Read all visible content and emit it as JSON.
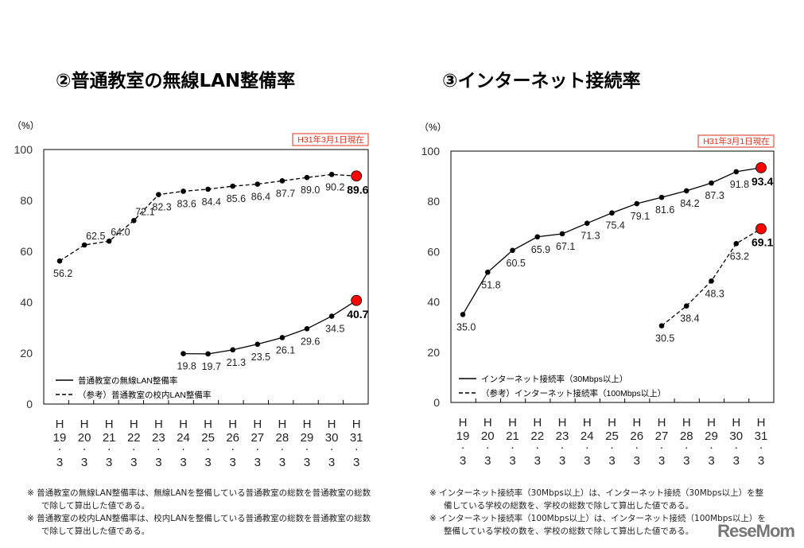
{
  "chart_data": [
    {
      "type": "line",
      "title": "②普通教室の無線LAN整備率",
      "unit_label": "（%）",
      "date_badge": "H31年3月1日現在",
      "categories": [
        "H19.3",
        "H20.3",
        "H21.3",
        "H22.3",
        "H23.3",
        "H24.3",
        "H25.3",
        "H26.3",
        "H27.3",
        "H28.3",
        "H29.3",
        "H30.3",
        "H31.3"
      ],
      "ylim": [
        0,
        100
      ],
      "yticks": [
        0,
        20,
        40,
        60,
        80,
        100
      ],
      "legend": "bottom-left",
      "grid": false,
      "series": [
        {
          "name": "普通教室の無線LAN整備率",
          "style": "solid",
          "values": [
            null,
            null,
            null,
            null,
            null,
            19.8,
            19.7,
            21.3,
            23.5,
            26.1,
            29.6,
            34.5,
            40.7
          ]
        },
        {
          "name": "（参考）普通教室の校内LAN整備率",
          "style": "dashed",
          "values": [
            56.2,
            62.5,
            64.0,
            72.1,
            82.3,
            83.6,
            84.4,
            85.6,
            86.4,
            87.7,
            89.0,
            90.2,
            89.6
          ]
        }
      ]
    },
    {
      "type": "line",
      "title": "③インターネット接続率",
      "unit_label": "（%）",
      "date_badge": "H31年3月1日現在",
      "categories": [
        "H19.3",
        "H20.3",
        "H21.3",
        "H22.3",
        "H23.3",
        "H24.3",
        "H25.3",
        "H26.3",
        "H27.3",
        "H28.3",
        "H29.3",
        "H30.3",
        "H31.3"
      ],
      "ylim": [
        0,
        100
      ],
      "yticks": [
        0,
        20,
        40,
        60,
        80,
        100
      ],
      "legend": "bottom-left",
      "grid": false,
      "series": [
        {
          "name": "インターネット接続率（30Mbps以上）",
          "style": "solid",
          "values": [
            35.0,
            51.8,
            60.5,
            65.9,
            67.1,
            71.3,
            75.4,
            79.1,
            81.6,
            84.2,
            87.3,
            91.8,
            93.4
          ]
        },
        {
          "name": "（参考）インターネット接続率（100Mbps以上）",
          "style": "dashed",
          "values": [
            null,
            null,
            null,
            null,
            null,
            null,
            null,
            null,
            30.5,
            38.4,
            48.3,
            63.2,
            69.1
          ]
        }
      ]
    }
  ],
  "colors": {
    "highlight_marker": "#ff0000",
    "badge": "#e0301e",
    "line": "#000000"
  },
  "notes_left": [
    "※ 普通教室の無線LAN整備率は、無線LANを整備している普通教室の総数を普通教室の総数で除して算出した値である。",
    "※ 普通教室の校内LAN整備率は、校内LANを整備している普通教室の総数を普通教室の総数で除して算出した値である。"
  ],
  "notes_right": [
    "※ インターネット接続率（30Mbps以上）は、インターネット接続（30Mbps以上）を整備している学校の総数を、学校の総数で除して算出した値である。",
    "※ インターネット接続率（100Mbps以上）は、インターネット接続（100Mbps以上）を整備している学校の数を、学校の総数で除して算出した値である。"
  ],
  "logo": "ReseMom"
}
